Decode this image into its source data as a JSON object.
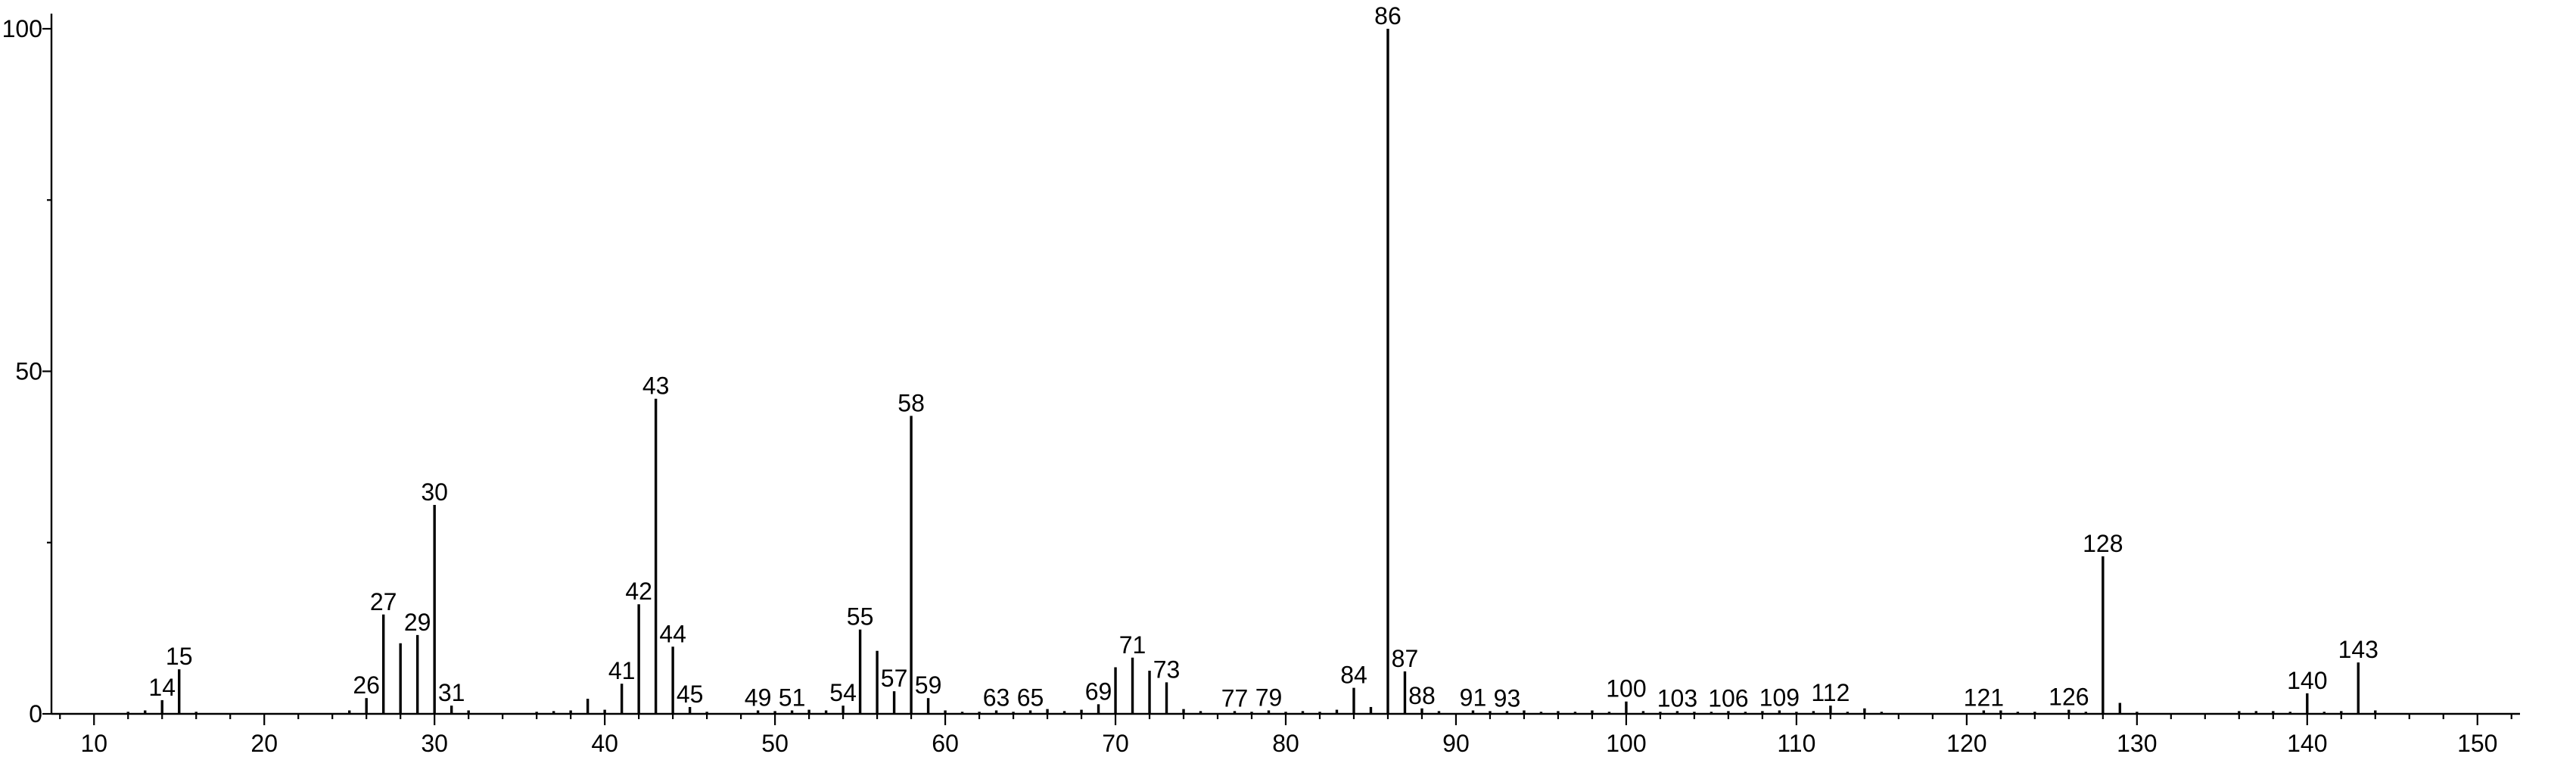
{
  "chart_data": {
    "type": "bar",
    "title": "",
    "xlabel": "",
    "ylabel": "",
    "xlim": [
      7.5,
      152.5
    ],
    "ylim": [
      0,
      100
    ],
    "x_ticks": [
      "10",
      "20",
      "30",
      "40",
      "50",
      "60",
      "70",
      "80",
      "90",
      "100",
      "110",
      "120",
      "130",
      "140",
      "150"
    ],
    "y_ticks": [
      "0",
      "50",
      "100"
    ],
    "grid": false,
    "series": [
      {
        "peaks": [
          {
            "x": 12,
            "y": 0.3
          },
          {
            "x": 13,
            "y": 0.5
          },
          {
            "x": 14,
            "y": 2.0,
            "label": "14"
          },
          {
            "x": 15,
            "y": 6.5,
            "label": "15"
          },
          {
            "x": 16,
            "y": 0.3
          },
          {
            "x": 25,
            "y": 0.5
          },
          {
            "x": 26,
            "y": 2.3,
            "label": "26"
          },
          {
            "x": 27,
            "y": 14.5,
            "label": "27"
          },
          {
            "x": 28,
            "y": 10.3
          },
          {
            "x": 29,
            "y": 11.5,
            "label": "29"
          },
          {
            "x": 30,
            "y": 30.5,
            "label": "30"
          },
          {
            "x": 31,
            "y": 1.2,
            "label": "31"
          },
          {
            "x": 32,
            "y": 0.5
          },
          {
            "x": 36,
            "y": 0.3
          },
          {
            "x": 37,
            "y": 0.4
          },
          {
            "x": 38,
            "y": 0.5
          },
          {
            "x": 39,
            "y": 2.2
          },
          {
            "x": 40,
            "y": 0.6
          },
          {
            "x": 41,
            "y": 4.4,
            "label": "41"
          },
          {
            "x": 42,
            "y": 16.0,
            "label": "42"
          },
          {
            "x": 43,
            "y": 46.0,
            "label": "43"
          },
          {
            "x": 44,
            "y": 9.8,
            "label": "44"
          },
          {
            "x": 45,
            "y": 1.0,
            "label": "45"
          },
          {
            "x": 46,
            "y": 0.3
          },
          {
            "x": 49,
            "y": 0.5,
            "label": "49"
          },
          {
            "x": 50,
            "y": 0.4
          },
          {
            "x": 51,
            "y": 0.5,
            "label": "51"
          },
          {
            "x": 52,
            "y": 0.6
          },
          {
            "x": 53,
            "y": 0.5
          },
          {
            "x": 54,
            "y": 1.2,
            "label": "54"
          },
          {
            "x": 55,
            "y": 12.3,
            "label": "55"
          },
          {
            "x": 56,
            "y": 9.2
          },
          {
            "x": 57,
            "y": 3.3,
            "label": "57"
          },
          {
            "x": 58,
            "y": 43.5,
            "label": "58"
          },
          {
            "x": 59,
            "y": 2.3,
            "label": "59"
          },
          {
            "x": 60,
            "y": 0.5
          },
          {
            "x": 61,
            "y": 0.3
          },
          {
            "x": 62,
            "y": 0.3
          },
          {
            "x": 63,
            "y": 0.5,
            "label": "63"
          },
          {
            "x": 64,
            "y": 0.3
          },
          {
            "x": 65,
            "y": 0.5,
            "label": "65"
          },
          {
            "x": 66,
            "y": 0.7
          },
          {
            "x": 67,
            "y": 0.4
          },
          {
            "x": 68,
            "y": 0.6
          },
          {
            "x": 69,
            "y": 1.4,
            "label": "69"
          },
          {
            "x": 70,
            "y": 6.8
          },
          {
            "x": 71,
            "y": 8.2,
            "label": "71"
          },
          {
            "x": 72,
            "y": 6.3
          },
          {
            "x": 73,
            "y": 4.6,
            "label": "73"
          },
          {
            "x": 74,
            "y": 0.7
          },
          {
            "x": 75,
            "y": 0.4
          },
          {
            "x": 77,
            "y": 0.4,
            "label": "77"
          },
          {
            "x": 78,
            "y": 0.3
          },
          {
            "x": 79,
            "y": 0.5,
            "label": "79"
          },
          {
            "x": 80,
            "y": 0.3
          },
          {
            "x": 81,
            "y": 0.4
          },
          {
            "x": 82,
            "y": 0.3
          },
          {
            "x": 83,
            "y": 0.6
          },
          {
            "x": 84,
            "y": 3.8,
            "label": "84"
          },
          {
            "x": 85,
            "y": 1.0
          },
          {
            "x": 86,
            "y": 100.0,
            "label": "86"
          },
          {
            "x": 87,
            "y": 6.2,
            "label": "87"
          },
          {
            "x": 88,
            "y": 0.8,
            "label": "88"
          },
          {
            "x": 89,
            "y": 0.4
          },
          {
            "x": 91,
            "y": 0.5,
            "label": "91"
          },
          {
            "x": 92,
            "y": 0.4
          },
          {
            "x": 93,
            "y": 0.4,
            "label": "93"
          },
          {
            "x": 94,
            "y": 0.5
          },
          {
            "x": 95,
            "y": 0.3
          },
          {
            "x": 96,
            "y": 0.4
          },
          {
            "x": 97,
            "y": 0.3
          },
          {
            "x": 98,
            "y": 0.5
          },
          {
            "x": 99,
            "y": 0.3
          },
          {
            "x": 100,
            "y": 1.8,
            "label": "100"
          },
          {
            "x": 101,
            "y": 0.4
          },
          {
            "x": 102,
            "y": 0.3
          },
          {
            "x": 103,
            "y": 0.4,
            "label": "103"
          },
          {
            "x": 104,
            "y": 0.3
          },
          {
            "x": 105,
            "y": 0.3
          },
          {
            "x": 106,
            "y": 0.4,
            "label": "106"
          },
          {
            "x": 107,
            "y": 0.3
          },
          {
            "x": 108,
            "y": 0.4
          },
          {
            "x": 109,
            "y": 0.5,
            "label": "109"
          },
          {
            "x": 110,
            "y": 0.3
          },
          {
            "x": 111,
            "y": 0.4
          },
          {
            "x": 112,
            "y": 1.2,
            "label": "112"
          },
          {
            "x": 113,
            "y": 0.3
          },
          {
            "x": 114,
            "y": 0.8
          },
          {
            "x": 115,
            "y": 0.3
          },
          {
            "x": 121,
            "y": 0.5,
            "label": "121"
          },
          {
            "x": 122,
            "y": 0.5
          },
          {
            "x": 123,
            "y": 0.3
          },
          {
            "x": 124,
            "y": 0.3
          },
          {
            "x": 126,
            "y": 0.6,
            "label": "126"
          },
          {
            "x": 127,
            "y": 0.3
          },
          {
            "x": 128,
            "y": 23.0,
            "label": "128"
          },
          {
            "x": 129,
            "y": 1.6
          },
          {
            "x": 130,
            "y": 0.3
          },
          {
            "x": 136,
            "y": 0.4
          },
          {
            "x": 137,
            "y": 0.4
          },
          {
            "x": 138,
            "y": 0.4
          },
          {
            "x": 139,
            "y": 0.3
          },
          {
            "x": 140,
            "y": 3.0,
            "label": "140"
          },
          {
            "x": 141,
            "y": 0.3
          },
          {
            "x": 142,
            "y": 0.4
          },
          {
            "x": 143,
            "y": 7.5,
            "label": "143"
          },
          {
            "x": 144,
            "y": 0.5
          }
        ]
      }
    ]
  }
}
